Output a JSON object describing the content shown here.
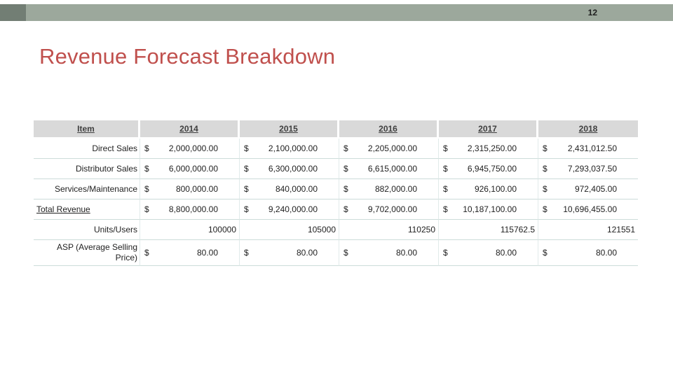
{
  "slide": {
    "page_number": "12",
    "title": "Revenue Forecast Breakdown"
  },
  "table": {
    "currency_symbol": "$",
    "columns": [
      "Item",
      "2014",
      "2015",
      "2016",
      "2017",
      "2018"
    ],
    "rows": [
      {
        "label": "Direct Sales",
        "values": [
          "2,000,000.00",
          "2,100,000.00",
          "2,205,000.00",
          "2,315,250.00",
          "2,431,012.50"
        ]
      },
      {
        "label": "Distributor Sales",
        "values": [
          "6,000,000.00",
          "6,300,000.00",
          "6,615,000.00",
          "6,945,750.00",
          "7,293,037.50"
        ]
      },
      {
        "label": "Services/Maintenance",
        "values": [
          "800,000.00",
          "840,000.00",
          "882,000.00",
          "926,100.00",
          "972,405.00"
        ]
      },
      {
        "label": "Total Revenue",
        "values": [
          "8,800,000.00",
          "9,240,000.00",
          "9,702,000.00",
          "10,187,100.00",
          "10,696,455.00"
        ]
      },
      {
        "label": "Units/Users",
        "values": [
          "100000",
          "105000",
          "110250",
          "115762.5",
          "121551"
        ]
      },
      {
        "label": "ASP (Average Selling Price)",
        "values": [
          "80.00",
          "80.00",
          "80.00",
          "80.00",
          "80.00"
        ]
      }
    ]
  }
}
